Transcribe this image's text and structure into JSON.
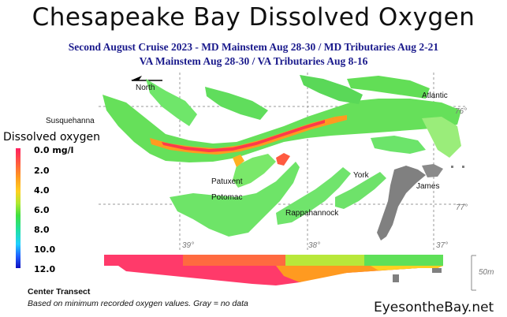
{
  "title": "Chesapeake Bay Dissolved Oxygen",
  "subtitle_line1": "Second August Cruise 2023 - MD Mainstem Aug 28-30 / MD Tributaries Aug 2-21",
  "subtitle_line2": "VA Mainstem Aug 28-30 /  VA Tributaries Aug 8-16",
  "legend": {
    "title": "Dissolved oxygen",
    "ticks": [
      "0.0 mg/l",
      "2.0",
      "4.0",
      "6.0",
      "8.0",
      "10.0",
      "12.0"
    ]
  },
  "map_labels": {
    "north": "North",
    "susquehanna": "Susquehanna",
    "atlantic": "Atlantic",
    "patuxent": "Patuxent",
    "potomac": "Potomac",
    "york": "York",
    "james": "James",
    "rappahannock": "Rappahannock"
  },
  "coordinates": {
    "lon_76": "76°",
    "lon_77": "77°",
    "lat_39": "39°",
    "lat_38": "38°",
    "lat_37": "37°"
  },
  "transect": {
    "label": "Center Transect",
    "depth_scale": "50m"
  },
  "footnote": "Based on minimum recorded oxygen values. Gray = no data",
  "brand": "EyesontheBay.net",
  "colors": {
    "low": "#ff2060",
    "mid": "#40e040",
    "high": "#1010c0",
    "no_data": "#808080",
    "subtitle": "#1a1a8c"
  }
}
